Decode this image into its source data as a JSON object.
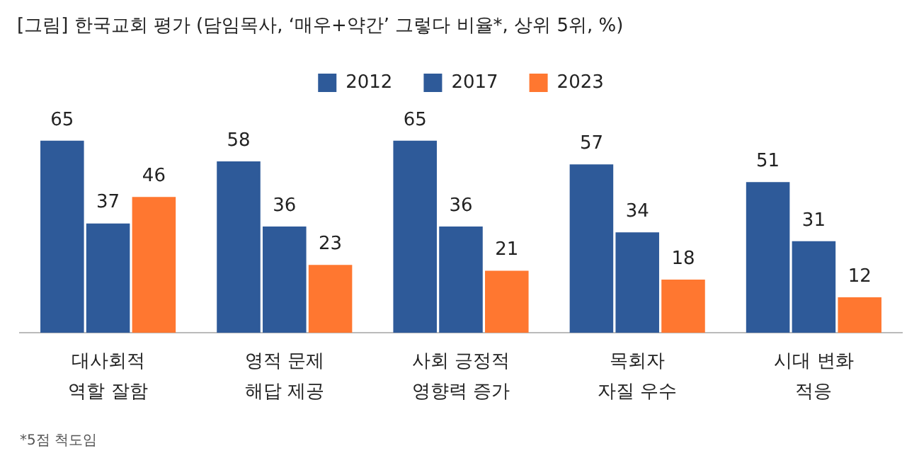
{
  "chart_data": {
    "type": "bar",
    "title": "[그림] 한국교회 평가 (담임목사, ‘매우+약간’ 그렇다 비율*, 상위 5위, %)",
    "categories": [
      "대사회적\n역할 잘함",
      "영적 문제\n해답 제공",
      "사회 긍정적\n영향력 증가",
      "목회자\n자질 우수",
      "시대 변화\n적응"
    ],
    "series": [
      {
        "name": "2012",
        "color": "#2e5a99",
        "values": [
          65,
          58,
          65,
          57,
          51
        ]
      },
      {
        "name": "2017",
        "color": "#2e5a99",
        "values": [
          37,
          36,
          36,
          34,
          31
        ]
      },
      {
        "name": "2023",
        "color": "#ff7730",
        "values": [
          46,
          23,
          21,
          18,
          12
        ]
      }
    ],
    "legend": "top",
    "data_labels": true,
    "grid": false,
    "tick_labels": "x",
    "annotations": [
      "*5점 척도임"
    ]
  }
}
